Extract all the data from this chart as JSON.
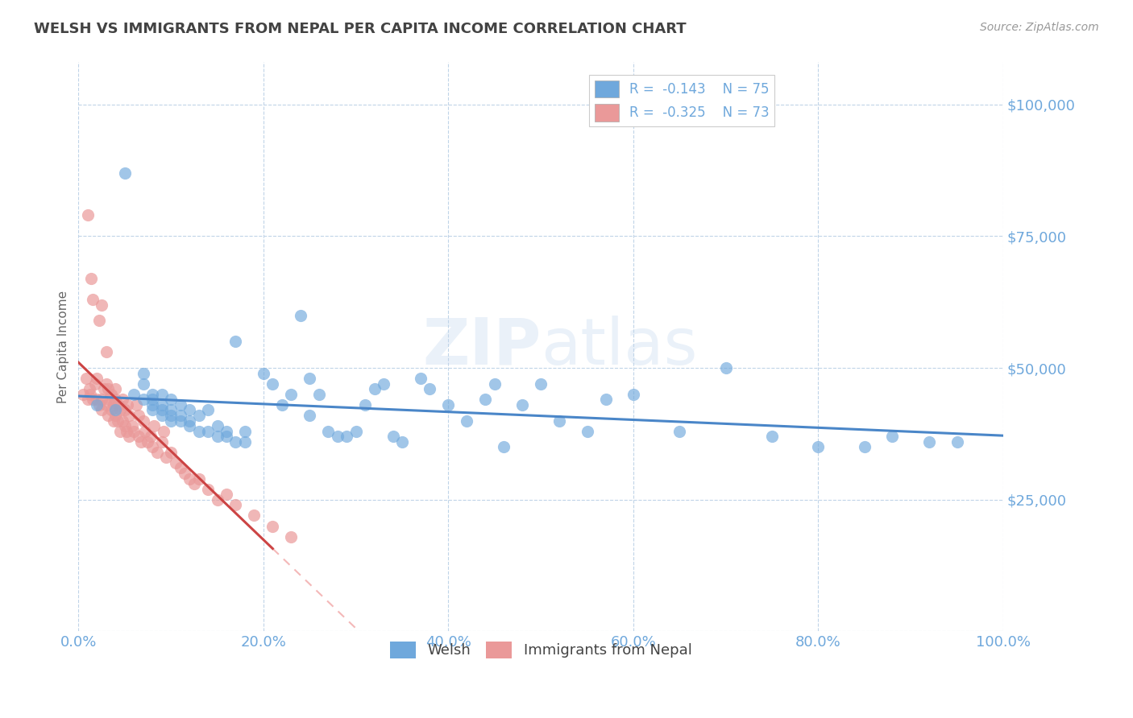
{
  "title": "WELSH VS IMMIGRANTS FROM NEPAL PER CAPITA INCOME CORRELATION CHART",
  "source_text": "Source: ZipAtlas.com",
  "ylabel": "Per Capita Income",
  "xlim": [
    0,
    1.0
  ],
  "ylim": [
    0,
    108000
  ],
  "yticks": [
    0,
    25000,
    50000,
    75000,
    100000
  ],
  "xtick_labels": [
    "0.0%",
    "20.0%",
    "40.0%",
    "60.0%",
    "80.0%",
    "100.0%"
  ],
  "xticks": [
    0,
    0.2,
    0.4,
    0.6,
    0.8,
    1.0
  ],
  "welsh_color": "#6fa8dc",
  "nepal_color": "#ea9999",
  "trend_line_color_welsh": "#4a86c8",
  "trend_line_color_nepal": "#cc4444",
  "dashed_trend_color": "#f4b8b8",
  "title_color": "#434343",
  "axis_label_color": "#666666",
  "tick_label_color": "#6fa8dc",
  "grid_color": "#c0d4e8",
  "background_color": "#ffffff",
  "legend_r_welsh": "-0.143",
  "legend_n_welsh": "75",
  "legend_r_nepal": "-0.325",
  "legend_n_nepal": "73",
  "legend_label_welsh": "Welsh",
  "legend_label_nepal": "Immigrants from Nepal",
  "welsh_x": [
    0.02,
    0.04,
    0.05,
    0.06,
    0.07,
    0.07,
    0.07,
    0.08,
    0.08,
    0.08,
    0.08,
    0.09,
    0.09,
    0.09,
    0.09,
    0.1,
    0.1,
    0.1,
    0.1,
    0.11,
    0.11,
    0.11,
    0.12,
    0.12,
    0.12,
    0.13,
    0.13,
    0.14,
    0.14,
    0.15,
    0.15,
    0.16,
    0.16,
    0.17,
    0.17,
    0.18,
    0.18,
    0.2,
    0.21,
    0.22,
    0.23,
    0.24,
    0.25,
    0.25,
    0.26,
    0.27,
    0.28,
    0.29,
    0.3,
    0.31,
    0.32,
    0.33,
    0.34,
    0.35,
    0.37,
    0.38,
    0.4,
    0.42,
    0.44,
    0.45,
    0.46,
    0.48,
    0.5,
    0.52,
    0.55,
    0.57,
    0.6,
    0.65,
    0.7,
    0.75,
    0.8,
    0.85,
    0.88,
    0.92,
    0.95
  ],
  "welsh_y": [
    43000,
    42000,
    87000,
    45000,
    44000,
    47000,
    49000,
    42000,
    43000,
    44000,
    45000,
    41000,
    42000,
    43000,
    45000,
    40000,
    41000,
    42000,
    44000,
    40000,
    41000,
    43000,
    39000,
    40000,
    42000,
    38000,
    41000,
    38000,
    42000,
    37000,
    39000,
    37000,
    38000,
    36000,
    55000,
    36000,
    38000,
    49000,
    47000,
    43000,
    45000,
    60000,
    48000,
    41000,
    45000,
    38000,
    37000,
    37000,
    38000,
    43000,
    46000,
    47000,
    37000,
    36000,
    48000,
    46000,
    43000,
    40000,
    44000,
    47000,
    35000,
    43000,
    47000,
    40000,
    38000,
    44000,
    45000,
    38000,
    50000,
    37000,
    35000,
    35000,
    37000,
    36000,
    36000
  ],
  "nepal_x": [
    0.005,
    0.008,
    0.01,
    0.01,
    0.012,
    0.013,
    0.014,
    0.015,
    0.015,
    0.018,
    0.02,
    0.02,
    0.022,
    0.022,
    0.025,
    0.025,
    0.025,
    0.028,
    0.03,
    0.03,
    0.03,
    0.032,
    0.032,
    0.033,
    0.035,
    0.035,
    0.038,
    0.038,
    0.04,
    0.04,
    0.04,
    0.042,
    0.043,
    0.045,
    0.045,
    0.048,
    0.048,
    0.05,
    0.05,
    0.052,
    0.053,
    0.055,
    0.055,
    0.058,
    0.06,
    0.062,
    0.065,
    0.065,
    0.068,
    0.07,
    0.072,
    0.075,
    0.078,
    0.08,
    0.082,
    0.085,
    0.09,
    0.092,
    0.095,
    0.1,
    0.105,
    0.11,
    0.115,
    0.12,
    0.125,
    0.13,
    0.14,
    0.15,
    0.16,
    0.17,
    0.19,
    0.21,
    0.23
  ],
  "nepal_y": [
    45000,
    48000,
    79000,
    44000,
    46000,
    45000,
    67000,
    44000,
    63000,
    47000,
    44000,
    48000,
    43000,
    59000,
    42000,
    44000,
    62000,
    46000,
    43000,
    47000,
    53000,
    41000,
    46000,
    44000,
    42000,
    45000,
    40000,
    43000,
    41000,
    44000,
    46000,
    40000,
    43000,
    38000,
    42000,
    40000,
    44000,
    39000,
    42000,
    38000,
    43000,
    37000,
    41000,
    39000,
    38000,
    43000,
    37000,
    41000,
    36000,
    40000,
    38000,
    36000,
    37000,
    35000,
    39000,
    34000,
    36000,
    38000,
    33000,
    34000,
    32000,
    31000,
    30000,
    29000,
    28000,
    29000,
    27000,
    25000,
    26000,
    24000,
    22000,
    20000,
    18000
  ]
}
